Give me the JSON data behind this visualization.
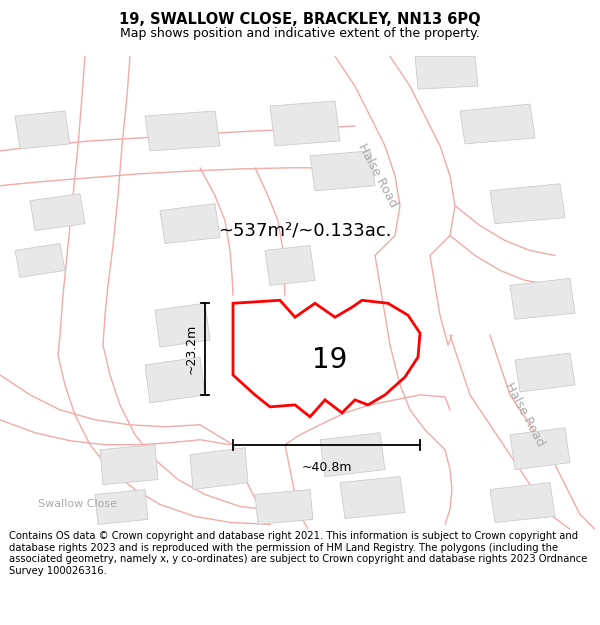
{
  "title_line1": "19, SWALLOW CLOSE, BRACKLEY, NN13 6PQ",
  "title_line2": "Map shows position and indicative extent of the property.",
  "footer_text": "Contains OS data © Crown copyright and database right 2021. This information is subject to Crown copyright and database rights 2023 and is reproduced with the permission of HM Land Registry. The polygons (including the associated geometry, namely x, y co-ordinates) are subject to Crown copyright and database rights 2023 Ordnance Survey 100026316.",
  "area_label": "~537m²/~0.133ac.",
  "plot_number": "19",
  "dim_width": "~40.8m",
  "dim_height": "~23.2m",
  "map_bg": "#ffffff",
  "road_color": "#f2aaaa",
  "building_color": "#e8e8e8",
  "building_edge": "#cccccc",
  "plot_color": "#ff0000",
  "title_fontsize": 10.5,
  "subtitle_fontsize": 9,
  "footer_fontsize": 7.2,
  "road_label_color": "#aaaaaa",
  "halse_road_label": "Halse Road",
  "swallow_close_label": "Swallow Close",
  "dim_fontsize": 9,
  "area_fontsize": 13,
  "plot_num_fontsize": 20
}
